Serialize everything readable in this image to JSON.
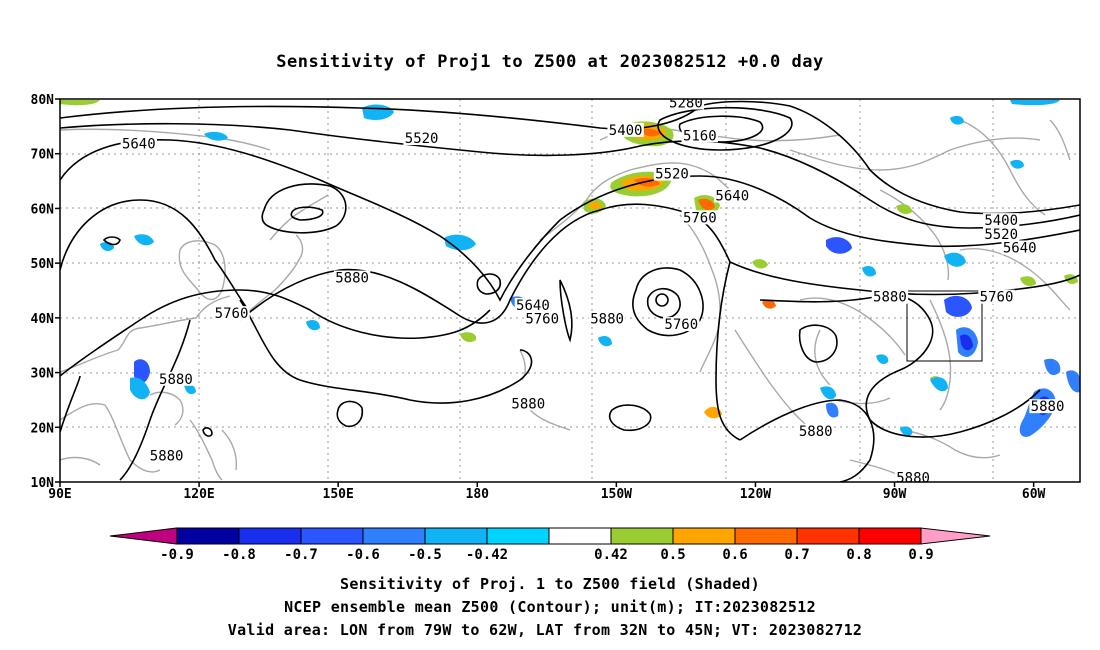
{
  "title": "Sensitivity of Proj1 to Z500 at 2023082512 +0.0 day",
  "map": {
    "lon_labels": [
      "90E",
      "120E",
      "150E",
      "180",
      "150W",
      "120W",
      "90W",
      "60W"
    ],
    "lat_labels": [
      "80N",
      "70N",
      "60N",
      "50N",
      "40N",
      "30N",
      "20N",
      "10N"
    ],
    "lon_range": [
      90,
      310
    ],
    "lat_range": [
      10,
      80
    ],
    "valid_box": {
      "lon_min": 281,
      "lon_max": 298,
      "lat_min": 32,
      "lat_max": 45
    },
    "contour_labels": [
      {
        "text": "5280",
        "lon": 225,
        "lat": 79
      },
      {
        "text": "5160",
        "lon": 228,
        "lat": 73
      },
      {
        "text": "5400",
        "lon": 212,
        "lat": 74
      },
      {
        "text": "5520",
        "lon": 168,
        "lat": 72.5
      },
      {
        "text": "5640",
        "lon": 107,
        "lat": 71.5
      },
      {
        "text": "5520",
        "lon": 222,
        "lat": 66
      },
      {
        "text": "5640",
        "lon": 235,
        "lat": 62
      },
      {
        "text": "5760",
        "lon": 228,
        "lat": 58
      },
      {
        "text": "5400",
        "lon": 293,
        "lat": 57.5
      },
      {
        "text": "5520",
        "lon": 293,
        "lat": 55
      },
      {
        "text": "5640",
        "lon": 297,
        "lat": 52.5
      },
      {
        "text": "5880",
        "lon": 153,
        "lat": 47
      },
      {
        "text": "5760",
        "lon": 127,
        "lat": 40.5
      },
      {
        "text": "5640",
        "lon": 192,
        "lat": 42
      },
      {
        "text": "5760",
        "lon": 194,
        "lat": 39.5
      },
      {
        "text": "5880",
        "lon": 208,
        "lat": 39.5
      },
      {
        "text": "5760",
        "lon": 224,
        "lat": 38.5
      },
      {
        "text": "5880",
        "lon": 269,
        "lat": 43.5
      },
      {
        "text": "5760",
        "lon": 292,
        "lat": 43.5
      },
      {
        "text": "5880",
        "lon": 115,
        "lat": 28.5
      },
      {
        "text": "5880",
        "lon": 191,
        "lat": 24
      },
      {
        "text": "5880",
        "lon": 253,
        "lat": 19
      },
      {
        "text": "5880",
        "lon": 113,
        "lat": 14.5
      },
      {
        "text": "5880",
        "lon": 303,
        "lat": 23.5
      },
      {
        "text": "5880",
        "lon": 274,
        "lat": 10.5
      }
    ]
  },
  "colorbar": {
    "labels": [
      "-0.9",
      "-0.8",
      "-0.7",
      "-0.6",
      "-0.5",
      "-0.42",
      "0.42",
      "0.5",
      "0.6",
      "0.7",
      "0.8",
      "0.9"
    ],
    "colors": [
      "#0000a0",
      "#1a2ef0",
      "#2a55ff",
      "#2f7fff",
      "#12b3f5",
      "#00d5ff",
      "#ffffff",
      "#9acd32",
      "#ffa500",
      "#ff6a00",
      "#ff3300",
      "#ff0000"
    ],
    "end_low": "#c0007f",
    "end_high": "#ff9fc8"
  },
  "footer": {
    "line1": "Sensitivity of Proj. 1 to Z500 field (Shaded)",
    "line2": "NCEP ensemble mean Z500 (Contour); unit(m); IT:2023082512",
    "line3": "Valid area: LON from 79W to 62W, LAT from 32N to 45N; VT: 2023082712"
  }
}
